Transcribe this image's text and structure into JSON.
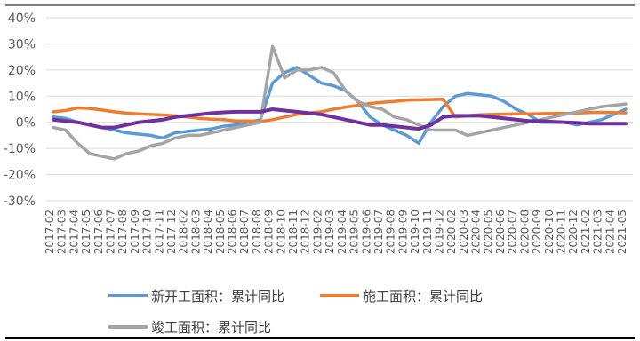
{
  "chart_data": {
    "type": "line",
    "title": "",
    "xlabel": "",
    "ylabel": "",
    "ylim": [
      -30,
      40
    ],
    "yticks": [
      "40%",
      "30%",
      "20%",
      "10%",
      "0%",
      "-10%",
      "-20%",
      "-30%"
    ],
    "x": [
      "2017-02",
      "2017-03",
      "2017-04",
      "2017-05",
      "2017-06",
      "2017-07",
      "2017-08",
      "2017-09",
      "2017-10",
      "2017-11",
      "2017-12",
      "2018-02",
      "2018-03",
      "2018-04",
      "2018-05",
      "2018-06",
      "2018-07",
      "2018-08",
      "2018-09",
      "2018-10",
      "2018-11",
      "2018-12",
      "2019-02",
      "2019-03",
      "2019-04",
      "2019-05",
      "2019-06",
      "2019-07",
      "2019-08",
      "2019-09",
      "2019-10",
      "2019-11",
      "2019-12",
      "2020-02",
      "2020-03",
      "2020-04",
      "2020-05",
      "2020-06",
      "2020-07",
      "2020-08",
      "2020-09",
      "2020-10",
      "2020-11",
      "2020-12",
      "2021-02",
      "2021-03",
      "2021-04",
      "2021-05"
    ],
    "series": [
      {
        "name": "新开工面积：累计同比",
        "color": "#5b9bd5",
        "values": [
          2.0,
          1.5,
          0.0,
          -1.0,
          -2.0,
          -3.0,
          -4.0,
          -4.5,
          -5.0,
          -6.0,
          -4.0,
          -3.5,
          -3.0,
          -2.5,
          -1.5,
          -1.0,
          0.0,
          1.0,
          15.0,
          19.0,
          21.0,
          18.0,
          15.0,
          14.0,
          12.0,
          8.0,
          2.0,
          -1.0,
          -3.0,
          -5.0,
          -8.0,
          0.0,
          6.0,
          10.0,
          11.0,
          10.5,
          10.0,
          8.0,
          5.0,
          3.0,
          0.0,
          0.0,
          0.0,
          -1.0,
          0.0,
          1.0,
          3.0,
          5.0
        ]
      },
      {
        "name": "施工面积：累计同比",
        "color": "#ed7d31",
        "values": [
          4.0,
          4.5,
          5.5,
          5.3,
          4.7,
          4.0,
          3.5,
          3.2,
          3.0,
          2.8,
          2.5,
          2.0,
          1.5,
          1.2,
          1.0,
          0.5,
          0.5,
          0.3,
          1.0,
          2.0,
          3.0,
          3.5,
          4.0,
          5.0,
          5.8,
          6.5,
          7.2,
          7.6,
          8.0,
          8.5,
          8.6,
          8.7,
          8.8,
          2.0,
          2.5,
          2.9,
          3.0,
          3.1,
          3.2,
          3.2,
          3.3,
          3.4,
          3.4,
          3.5,
          3.7,
          3.8,
          3.7,
          3.6
        ]
      },
      {
        "name": "竣工面积：累计同比",
        "color": "#a5a5a5",
        "values": [
          -2.0,
          -3.0,
          -8.0,
          -12.0,
          -13.0,
          -14.0,
          -12.0,
          -11.0,
          -9.0,
          -8.0,
          -6.0,
          -5.0,
          -5.0,
          -4.0,
          -3.0,
          -2.0,
          -1.0,
          0.0,
          29.0,
          17.0,
          20.0,
          20.0,
          21.0,
          19.0,
          12.0,
          8.0,
          6.0,
          5.0,
          2.0,
          1.0,
          -1.0,
          -3.0,
          -3.0,
          -3.0,
          -5.0,
          -4.0,
          -3.0,
          -2.0,
          -1.0,
          0.0,
          1.0,
          2.0,
          3.0,
          4.0,
          5.0,
          6.0,
          6.5,
          7.0
        ]
      },
      {
        "name": "",
        "color": "#7030a0",
        "values": [
          1.0,
          0.5,
          0.0,
          -1.0,
          -2.0,
          -2.0,
          -1.0,
          0.0,
          0.5,
          1.0,
          2.0,
          2.5,
          3.0,
          3.5,
          3.8,
          4.0,
          4.0,
          4.0,
          5.0,
          4.5,
          4.0,
          3.5,
          3.0,
          2.0,
          1.0,
          0.0,
          -1.0,
          -1.0,
          -1.5,
          -2.0,
          -2.5,
          -1.0,
          2.0,
          2.5,
          2.5,
          2.5,
          2.0,
          1.5,
          1.0,
          0.5,
          0.5,
          0.2,
          0.0,
          -0.2,
          -0.5,
          -0.5,
          -0.5,
          -0.5
        ]
      }
    ],
    "grid": true,
    "legend_position": "bottom"
  }
}
